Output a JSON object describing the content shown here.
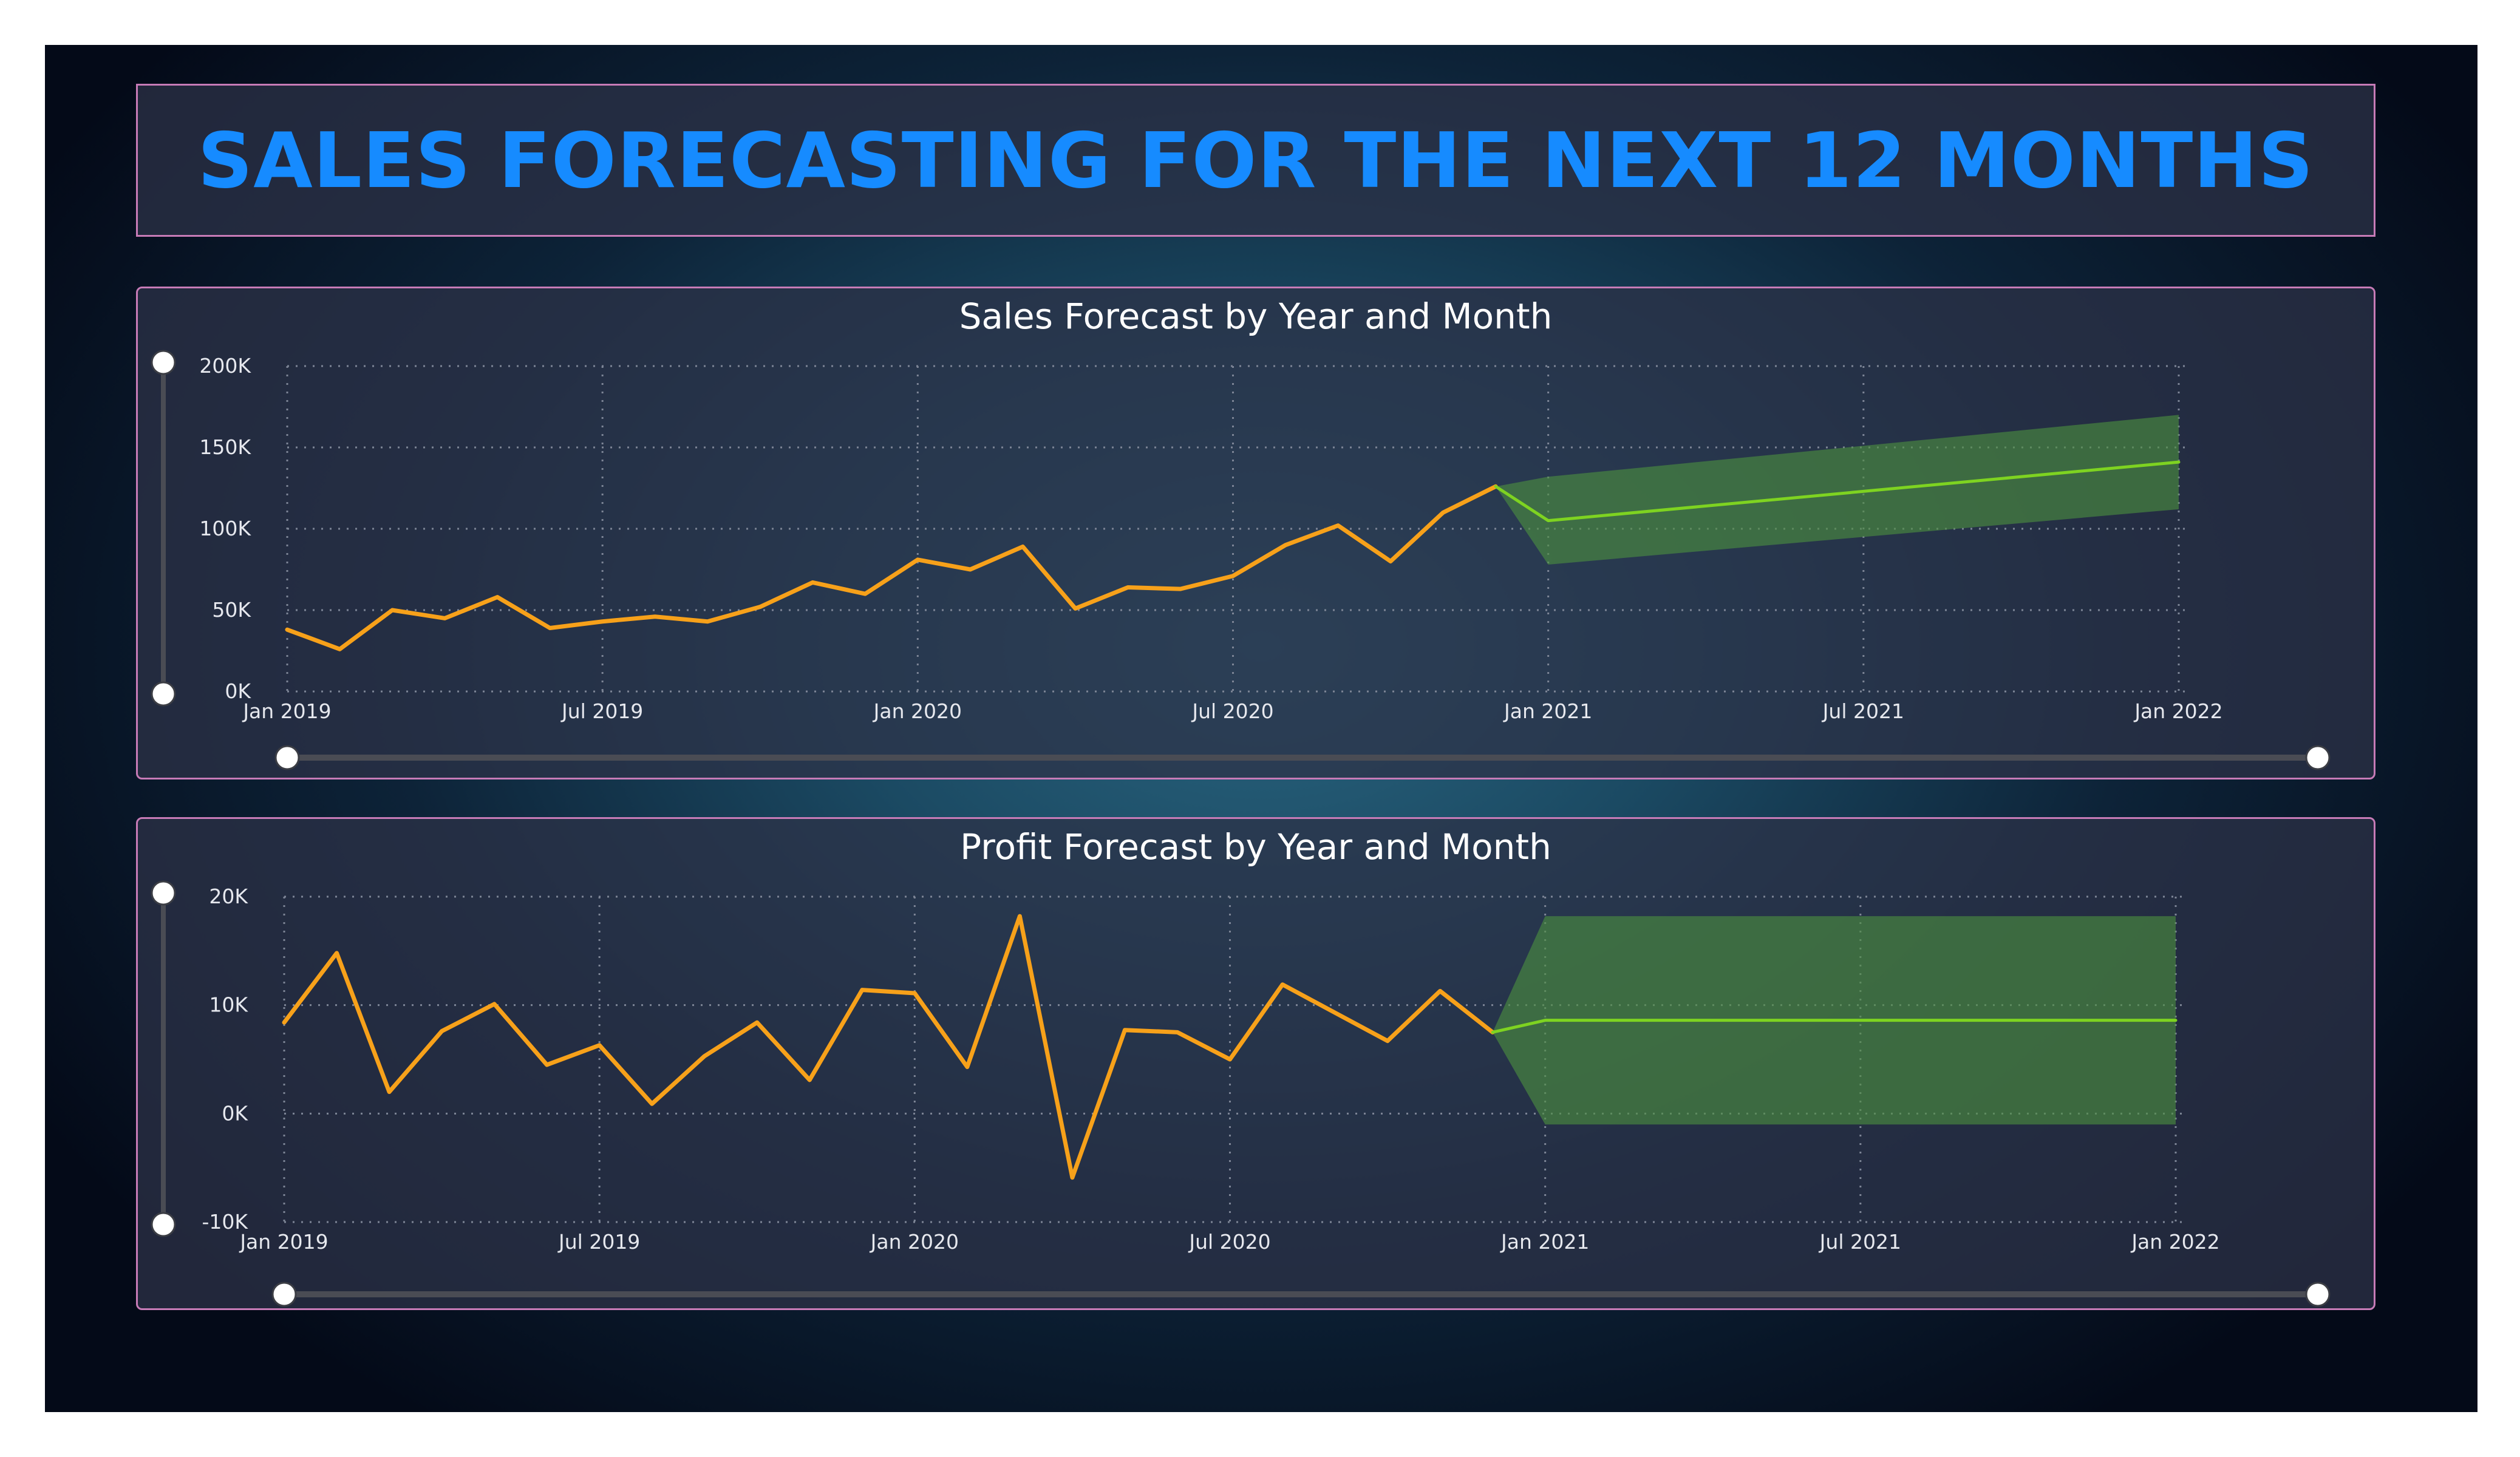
{
  "header": {
    "title": "SALES FORECASTING FOR THE NEXT 12 MONTHS"
  },
  "colors": {
    "actual": "#f7a11a",
    "forecast": "#7ed321",
    "band": "#4c8f3f",
    "title": "#168bff",
    "panel_border": "#c77bb7"
  },
  "chart_data": [
    {
      "type": "line",
      "title": "Sales Forecast by Year and Month",
      "xlabel": "",
      "ylabel": "",
      "x_ticks": [
        "Jan 2019",
        "Jul 2019",
        "Jan 2020",
        "Jul 2020",
        "Jan 2021",
        "Jul 2021",
        "Jan 2022"
      ],
      "y_ticks": [
        "0K",
        "50K",
        "100K",
        "150K",
        "200K"
      ],
      "ylim": [
        0,
        200000
      ],
      "xlim": [
        "2019-01",
        "2022-01"
      ],
      "grid": true,
      "series": [
        {
          "role": "actual",
          "x": [
            "2019-01",
            "2019-02",
            "2019-03",
            "2019-04",
            "2019-05",
            "2019-06",
            "2019-07",
            "2019-08",
            "2019-09",
            "2019-10",
            "2019-11",
            "2019-12",
            "2020-01",
            "2020-02",
            "2020-03",
            "2020-04",
            "2020-05",
            "2020-06",
            "2020-07",
            "2020-08",
            "2020-09",
            "2020-10",
            "2020-11",
            "2020-12"
          ],
          "values": [
            38000,
            26000,
            50000,
            45000,
            58000,
            39000,
            43000,
            46000,
            43000,
            52000,
            67000,
            60000,
            81000,
            75000,
            89000,
            51000,
            64000,
            63000,
            71000,
            90000,
            102000,
            80000,
            110000,
            126000
          ]
        },
        {
          "role": "forecast",
          "x": [
            "2020-12",
            "2021-01",
            "2022-01"
          ],
          "values": [
            126000,
            105000,
            141000
          ]
        }
      ],
      "forecast_band": {
        "x": [
          "2020-12",
          "2021-01",
          "2022-01"
        ],
        "upper": [
          126000,
          132000,
          170000
        ],
        "lower": [
          126000,
          78000,
          112000
        ]
      }
    },
    {
      "type": "line",
      "title": "Profit Forecast by Year and Month",
      "xlabel": "",
      "ylabel": "",
      "x_ticks": [
        "Jan 2019",
        "Jul 2019",
        "Jan 2020",
        "Jul 2020",
        "Jan 2021",
        "Jul 2021",
        "Jan 2022"
      ],
      "y_ticks": [
        "-10K",
        "0K",
        "10K",
        "20K"
      ],
      "ylim": [
        -10000,
        20000
      ],
      "xlim": [
        "2019-01",
        "2022-01"
      ],
      "grid": true,
      "series": [
        {
          "role": "actual",
          "x": [
            "2019-01",
            "2019-02",
            "2019-03",
            "2019-04",
            "2019-05",
            "2019-06",
            "2019-07",
            "2019-08",
            "2019-09",
            "2019-10",
            "2019-11",
            "2019-12",
            "2020-01",
            "2020-02",
            "2020-03",
            "2020-04",
            "2020-05",
            "2020-06",
            "2020-07",
            "2020-08",
            "2020-09",
            "2020-10",
            "2020-11",
            "2020-12"
          ],
          "values": [
            8400,
            14800,
            2000,
            7600,
            10100,
            4500,
            6300,
            900,
            5300,
            8400,
            3100,
            11400,
            11100,
            4300,
            18200,
            -5900,
            7700,
            7500,
            5000,
            11900,
            9300,
            6700,
            11300,
            7500
          ]
        },
        {
          "role": "forecast",
          "x": [
            "2020-12",
            "2021-01",
            "2022-01"
          ],
          "values": [
            7500,
            8600,
            8600
          ]
        }
      ],
      "forecast_band": {
        "x": [
          "2020-12",
          "2021-01",
          "2022-01"
        ],
        "upper": [
          7500,
          18200,
          18200
        ],
        "lower": [
          7500,
          -1000,
          -1000
        ]
      }
    }
  ]
}
